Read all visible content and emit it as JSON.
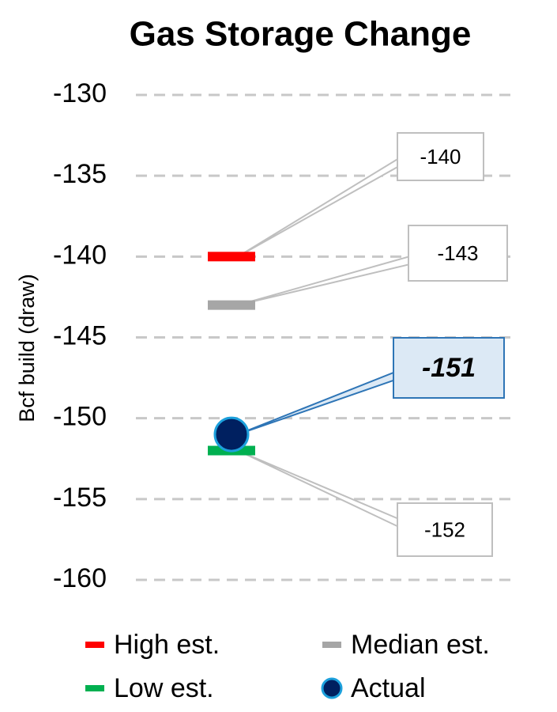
{
  "chart_data": {
    "type": "scatter",
    "title": "Gas Storage Change",
    "y_label": "Bcf build (draw)",
    "ylim": [
      -160,
      -130
    ],
    "yticks": [
      -130,
      -135,
      -140,
      -145,
      -150,
      -155,
      -160
    ],
    "grid": true,
    "series": [
      {
        "name": "High est.",
        "color": "#ff0000",
        "marker": "dash",
        "values": [
          -140
        ]
      },
      {
        "name": "Median est.",
        "color": "#a6a6a6",
        "marker": "dash",
        "values": [
          -143
        ]
      },
      {
        "name": "Low est.",
        "color": "#00b050",
        "marker": "dash",
        "values": [
          -152
        ]
      },
      {
        "name": "Actual",
        "color": "#002060",
        "marker": "circle",
        "values": [
          -151
        ]
      }
    ]
  }
}
